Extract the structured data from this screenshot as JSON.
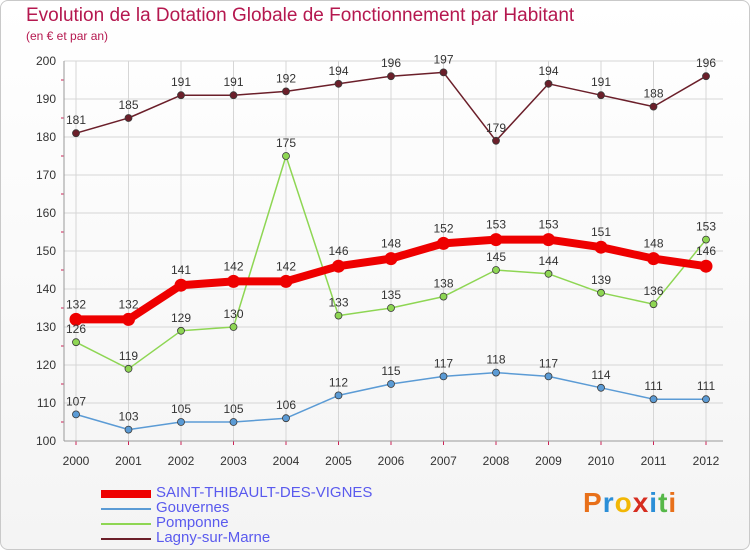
{
  "header": {
    "title": "Evolution de la Dotation Globale de Fonctionnement par Habitant",
    "subtitle": "(en € et par an)"
  },
  "colors": {
    "title": "#b5184f",
    "grid": "#d6d6d6",
    "tick_marks": "#cc2255",
    "axis_text": "#333333"
  },
  "logo": {
    "text": "Proxiti",
    "letters": [
      "P",
      "r",
      "o",
      "x",
      "i",
      "t",
      "i"
    ]
  },
  "chart_data": {
    "type": "line",
    "title": "Evolution de la Dotation Globale de Fonctionnement par Habitant",
    "subtitle": "(en € et par an)",
    "xlabel": "",
    "ylabel": "",
    "x": [
      "2000",
      "2001",
      "2002",
      "2003",
      "2004",
      "2005",
      "2006",
      "2007",
      "2008",
      "2009",
      "2010",
      "2011",
      "2012"
    ],
    "ylim": [
      100,
      200
    ],
    "yticks": [
      100,
      110,
      120,
      130,
      140,
      150,
      160,
      170,
      180,
      190,
      200
    ],
    "grid": true,
    "legend_position": "bottom-left",
    "series": [
      {
        "name": "SAINT-THIBAULT-DES-VIGNES",
        "color": "#ee0000",
        "values": [
          132,
          132,
          141,
          142,
          142,
          146,
          148,
          152,
          153,
          153,
          151,
          148,
          146
        ]
      },
      {
        "name": "Gouvernes",
        "color": "#5b9bd5",
        "values": [
          107,
          103,
          105,
          105,
          106,
          112,
          115,
          117,
          118,
          117,
          114,
          111,
          111
        ]
      },
      {
        "name": "Pomponne",
        "color": "#8ed653",
        "values": [
          126,
          119,
          129,
          130,
          175,
          133,
          135,
          138,
          145,
          144,
          139,
          136,
          153
        ]
      },
      {
        "name": "Lagny-sur-Marne",
        "color": "#6b1f2a",
        "values": [
          181,
          185,
          191,
          191,
          192,
          194,
          196,
          197,
          179,
          194,
          191,
          188,
          196
        ]
      }
    ]
  }
}
